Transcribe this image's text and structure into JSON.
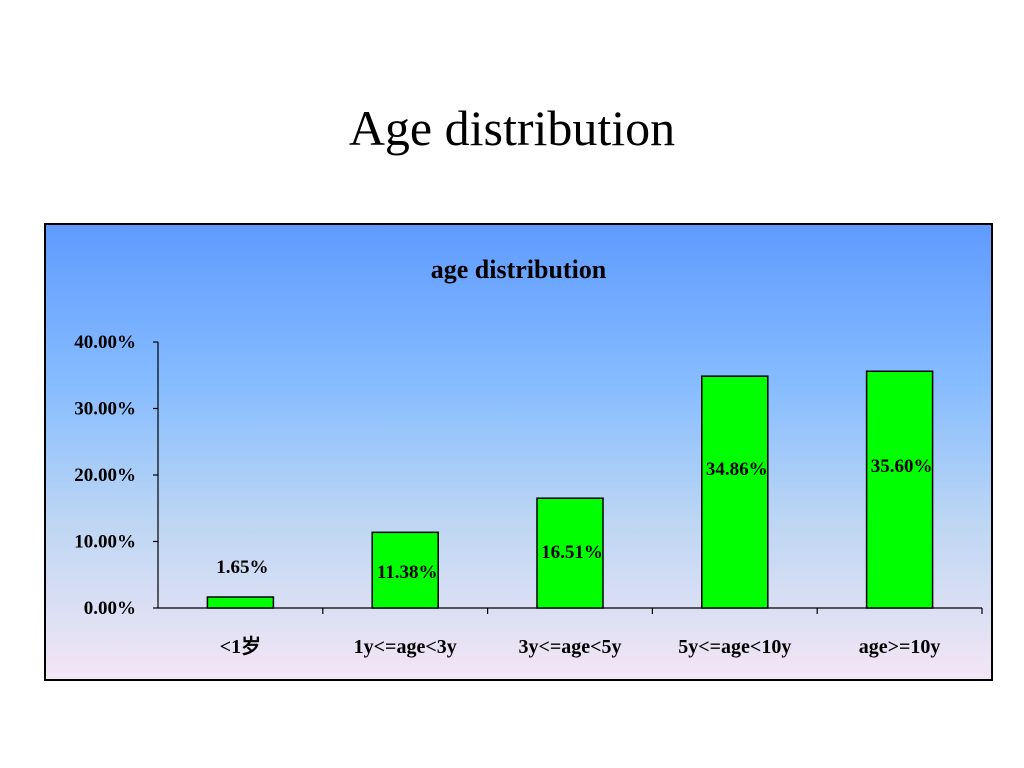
{
  "slide": {
    "title": "Age distribution"
  },
  "chart_data": {
    "type": "bar",
    "title": "age distribution",
    "categories": [
      "<1岁",
      "1y<=age<3y",
      "3y<=age<5y",
      "5y<=age<10y",
      "age>=10y"
    ],
    "values": [
      1.65,
      11.38,
      16.51,
      34.86,
      35.6
    ],
    "data_labels": [
      "1.65%",
      "11.38%",
      "16.51%",
      "34.86%",
      "35.60%"
    ],
    "y_ticks": [
      "0.00%",
      "10.00%",
      "20.00%",
      "30.00%",
      "40.00%"
    ],
    "ylim": [
      0,
      40
    ],
    "xlabel": "",
    "ylabel": "",
    "grid": false,
    "legend": "none",
    "bar_color": "#00ff00",
    "bar_outline": "#000000"
  }
}
